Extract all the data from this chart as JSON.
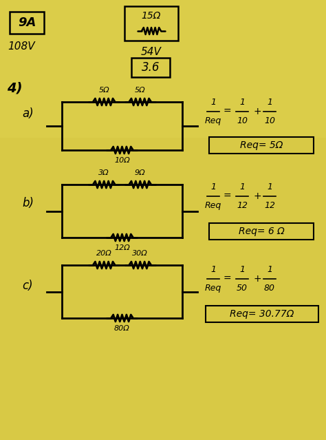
{
  "bg_color": "#d4c84a",
  "bg_color2": "#c8b830",
  "sections": [
    {
      "label": "a)",
      "r_top1": "5Ω",
      "r_top2": "5Ω",
      "r_bot": "10Ω",
      "formula_num": "1",
      "formula_den": "Req",
      "frac1_num": "1",
      "frac1_den": "10",
      "frac2_num": "1",
      "frac2_den": "10",
      "ans": "Req= 5Ω"
    },
    {
      "label": "b)",
      "r_top1": "3Ω",
      "r_top2": "9Ω",
      "r_bot": "12Ω",
      "formula_num": "1",
      "formula_den": "Req",
      "frac1_num": "1",
      "frac1_den": "12",
      "frac2_num": "1",
      "frac2_den": "12",
      "ans": "Req= 6 Ω"
    },
    {
      "label": "c)",
      "r_top1": "20Ω",
      "r_top2": "30Ω",
      "r_bot": "80Ω",
      "formula_num": "1",
      "formula_den": "Req",
      "frac1_num": "1",
      "frac1_den": "50",
      "frac2_num": "1",
      "frac2_den": "80",
      "ans": "Req= 30.77Ω"
    }
  ],
  "top": {
    "box9a": "9A",
    "label108": "108V",
    "box15": "15Ω",
    "label54": "54V",
    "box36": "3.6"
  },
  "header": "4)"
}
